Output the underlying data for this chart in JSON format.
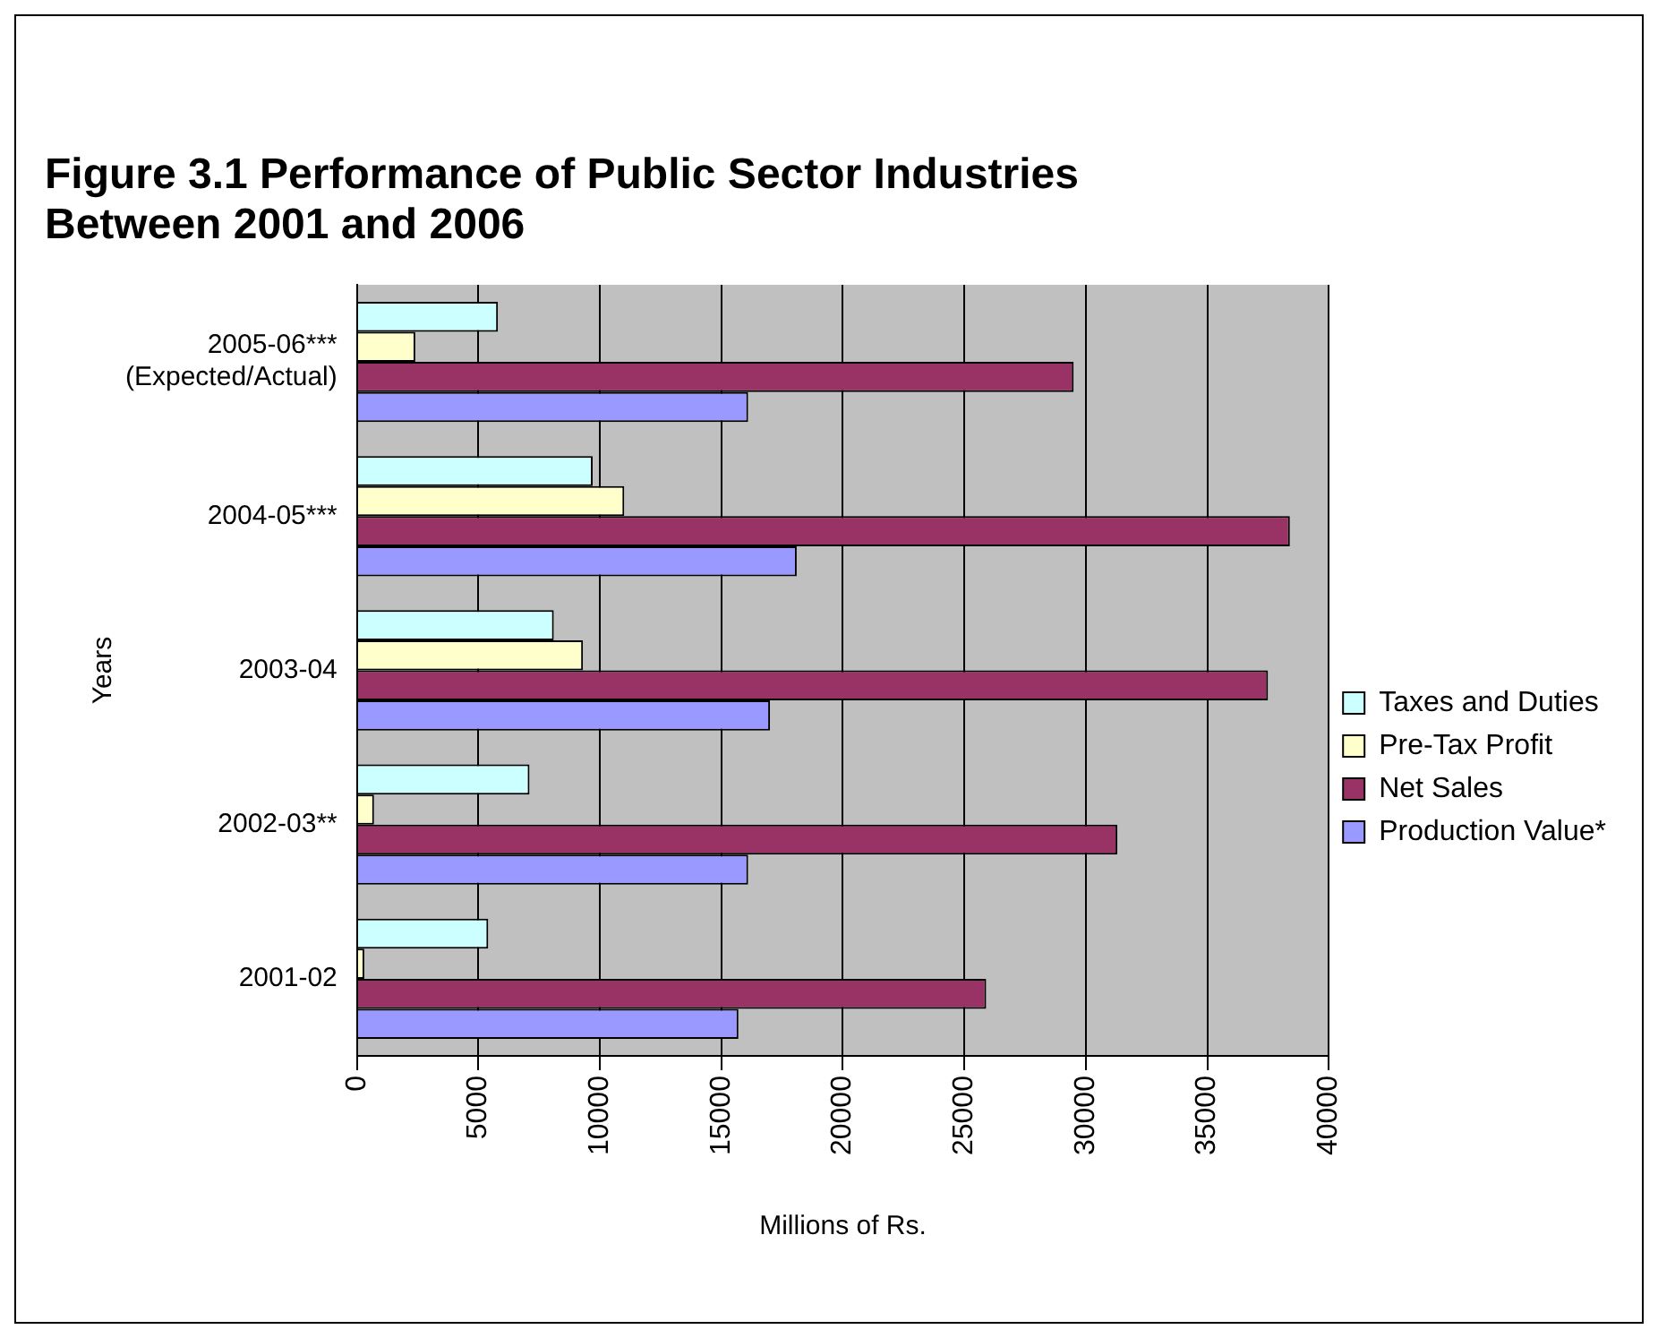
{
  "chart_data": {
    "type": "bar",
    "orientation": "horizontal",
    "title": "Figure 3.1 Performance of Public Sector  Industries Between 2001 and 2006",
    "xlabel": "Millions of Rs.",
    "ylabel": "Years",
    "categories": [
      "2005-06***\n(Expected/Actual)",
      "2004-05***",
      "2003-04",
      "2002-03**",
      "2001-02"
    ],
    "series": [
      {
        "name": "Taxes and Duties",
        "color": "#ccffff",
        "values": [
          5800,
          9700,
          8100,
          7100,
          5400
        ]
      },
      {
        "name": "Pre-Tax Profit",
        "color": "#ffffcc",
        "values": [
          2400,
          11000,
          9300,
          700,
          300
        ]
      },
      {
        "name": "Net Sales",
        "color": "#993366",
        "values": [
          29500,
          38400,
          37500,
          31300,
          25900
        ]
      },
      {
        "name": "Production Value*",
        "color": "#9999ff",
        "values": [
          16100,
          18100,
          17000,
          16100,
          15700
        ]
      }
    ],
    "xlim": [
      0,
      40000
    ],
    "xticks": [
      0,
      5000,
      10000,
      15000,
      20000,
      25000,
      30000,
      35000,
      40000
    ],
    "grid": "x",
    "legend": "right"
  }
}
